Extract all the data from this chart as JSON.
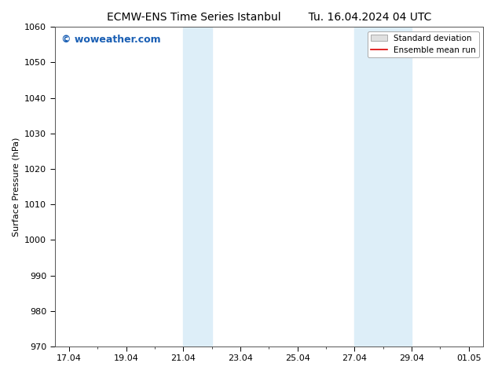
{
  "title_left": "ECMW-ENS Time Series Istanbul",
  "title_right": "Tu. 16.04.2024 04 UTC",
  "ylabel": "Surface Pressure (hPa)",
  "ylim": [
    970,
    1060
  ],
  "yticks": [
    970,
    980,
    990,
    1000,
    1010,
    1020,
    1030,
    1040,
    1050,
    1060
  ],
  "xtick_labels": [
    "17.04",
    "19.04",
    "21.04",
    "23.04",
    "25.04",
    "27.04",
    "29.04",
    "01.05"
  ],
  "xtick_positions": [
    0,
    2,
    4,
    6,
    8,
    10,
    12,
    14
  ],
  "shade_regions": [
    {
      "x_start": 4,
      "x_end": 5
    },
    {
      "x_start": 10,
      "x_end": 12
    }
  ],
  "shade_color": "#ddeef8",
  "background_color": "#ffffff",
  "watermark_text": "© woweather.com",
  "watermark_color": "#1a5fb4",
  "legend_std_label": "Standard deviation",
  "legend_mean_label": "Ensemble mean run",
  "legend_std_facecolor": "#e0e0e0",
  "legend_std_edgecolor": "#aaaaaa",
  "legend_mean_color": "#dd0000",
  "title_fontsize": 10,
  "axis_fontsize": 8,
  "tick_fontsize": 8,
  "xmin": -0.5,
  "xmax": 14.5
}
